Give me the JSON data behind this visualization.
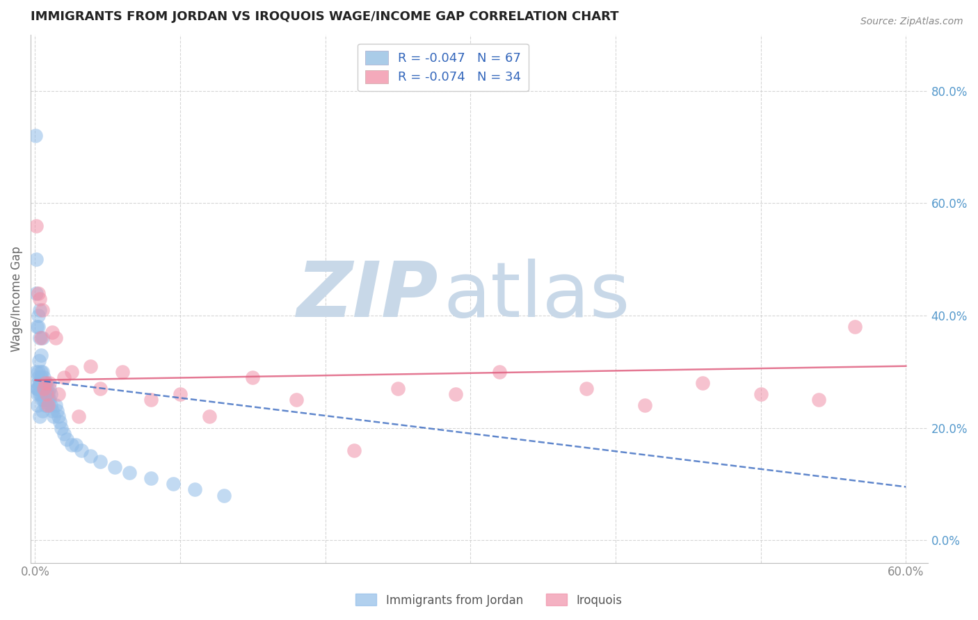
{
  "title": "IMMIGRANTS FROM JORDAN VS IROQUOIS WAGE/INCOME GAP CORRELATION CHART",
  "source": "Source: ZipAtlas.com",
  "ylabel": "Wage/Income Gap",
  "xlim": [
    -0.003,
    0.615
  ],
  "ylim": [
    -0.04,
    0.9
  ],
  "right_yticks": [
    0.0,
    0.2,
    0.4,
    0.6,
    0.8
  ],
  "right_yticklabels": [
    "0.0%",
    "20.0%",
    "40.0%",
    "60.0%",
    "80.0%"
  ],
  "xticks": [
    0.0,
    0.1,
    0.2,
    0.3,
    0.4,
    0.5,
    0.6
  ],
  "xticklabels": [
    "0.0%",
    "",
    "",
    "",
    "",
    "",
    "60.0%"
  ],
  "watermark_zip": "ZIP",
  "watermark_atlas": "atlas",
  "watermark_color": "#c8d8e8",
  "jordan_color": "#90bce8",
  "iroquois_color": "#f090a8",
  "jordan_line_color": "#4472c4",
  "iroquois_line_color": "#e06080",
  "jordan_R": -0.047,
  "jordan_N": 67,
  "iroquois_R": -0.074,
  "iroquois_N": 34,
  "jordan_points_x": [
    0.0005,
    0.0008,
    0.001,
    0.001,
    0.0012,
    0.0013,
    0.0015,
    0.0015,
    0.0016,
    0.0018,
    0.002,
    0.002,
    0.002,
    0.0022,
    0.0024,
    0.0025,
    0.003,
    0.003,
    0.003,
    0.003,
    0.003,
    0.004,
    0.004,
    0.004,
    0.004,
    0.004,
    0.005,
    0.005,
    0.005,
    0.005,
    0.005,
    0.006,
    0.006,
    0.006,
    0.006,
    0.007,
    0.007,
    0.007,
    0.008,
    0.008,
    0.008,
    0.009,
    0.009,
    0.01,
    0.01,
    0.011,
    0.011,
    0.012,
    0.013,
    0.014,
    0.015,
    0.016,
    0.017,
    0.018,
    0.02,
    0.022,
    0.025,
    0.028,
    0.032,
    0.038,
    0.045,
    0.055,
    0.065,
    0.08,
    0.095,
    0.11,
    0.13
  ],
  "jordan_points_y": [
    0.72,
    0.5,
    0.44,
    0.3,
    0.38,
    0.27,
    0.28,
    0.24,
    0.26,
    0.27,
    0.3,
    0.38,
    0.4,
    0.29,
    0.27,
    0.32,
    0.28,
    0.36,
    0.41,
    0.26,
    0.22,
    0.29,
    0.3,
    0.28,
    0.33,
    0.26,
    0.36,
    0.28,
    0.25,
    0.3,
    0.23,
    0.28,
    0.27,
    0.29,
    0.25,
    0.28,
    0.26,
    0.24,
    0.27,
    0.28,
    0.24,
    0.25,
    0.26,
    0.27,
    0.25,
    0.24,
    0.26,
    0.23,
    0.22,
    0.24,
    0.23,
    0.22,
    0.21,
    0.2,
    0.19,
    0.18,
    0.17,
    0.17,
    0.16,
    0.15,
    0.14,
    0.13,
    0.12,
    0.11,
    0.1,
    0.09,
    0.08
  ],
  "iroquois_points_x": [
    0.001,
    0.002,
    0.003,
    0.004,
    0.005,
    0.006,
    0.007,
    0.008,
    0.009,
    0.01,
    0.012,
    0.014,
    0.016,
    0.02,
    0.025,
    0.03,
    0.038,
    0.045,
    0.06,
    0.08,
    0.1,
    0.12,
    0.15,
    0.18,
    0.22,
    0.25,
    0.29,
    0.32,
    0.38,
    0.42,
    0.46,
    0.5,
    0.54,
    0.565
  ],
  "iroquois_points_y": [
    0.56,
    0.44,
    0.43,
    0.36,
    0.41,
    0.27,
    0.28,
    0.26,
    0.24,
    0.28,
    0.37,
    0.36,
    0.26,
    0.29,
    0.3,
    0.22,
    0.31,
    0.27,
    0.3,
    0.25,
    0.26,
    0.22,
    0.29,
    0.25,
    0.16,
    0.27,
    0.26,
    0.3,
    0.27,
    0.24,
    0.28,
    0.26,
    0.25,
    0.38
  ],
  "jordan_line_x": [
    0.0,
    0.6
  ],
  "jordan_line_y": [
    0.285,
    0.095
  ],
  "iroquois_line_x": [
    0.0,
    0.6
  ],
  "iroquois_line_y": [
    0.285,
    0.31
  ],
  "legend_label1": "R = -0.047   N = 67",
  "legend_label2": "R = -0.074   N = 34",
  "legend_color1": "#aacce8",
  "legend_color2": "#f4aabb",
  "bottom_legend1": "Immigrants from Jordan",
  "bottom_legend2": "Iroquois",
  "grid_color": "#cccccc",
  "title_fontsize": 13,
  "tick_label_color": "#888888",
  "right_tick_color": "#5599cc"
}
